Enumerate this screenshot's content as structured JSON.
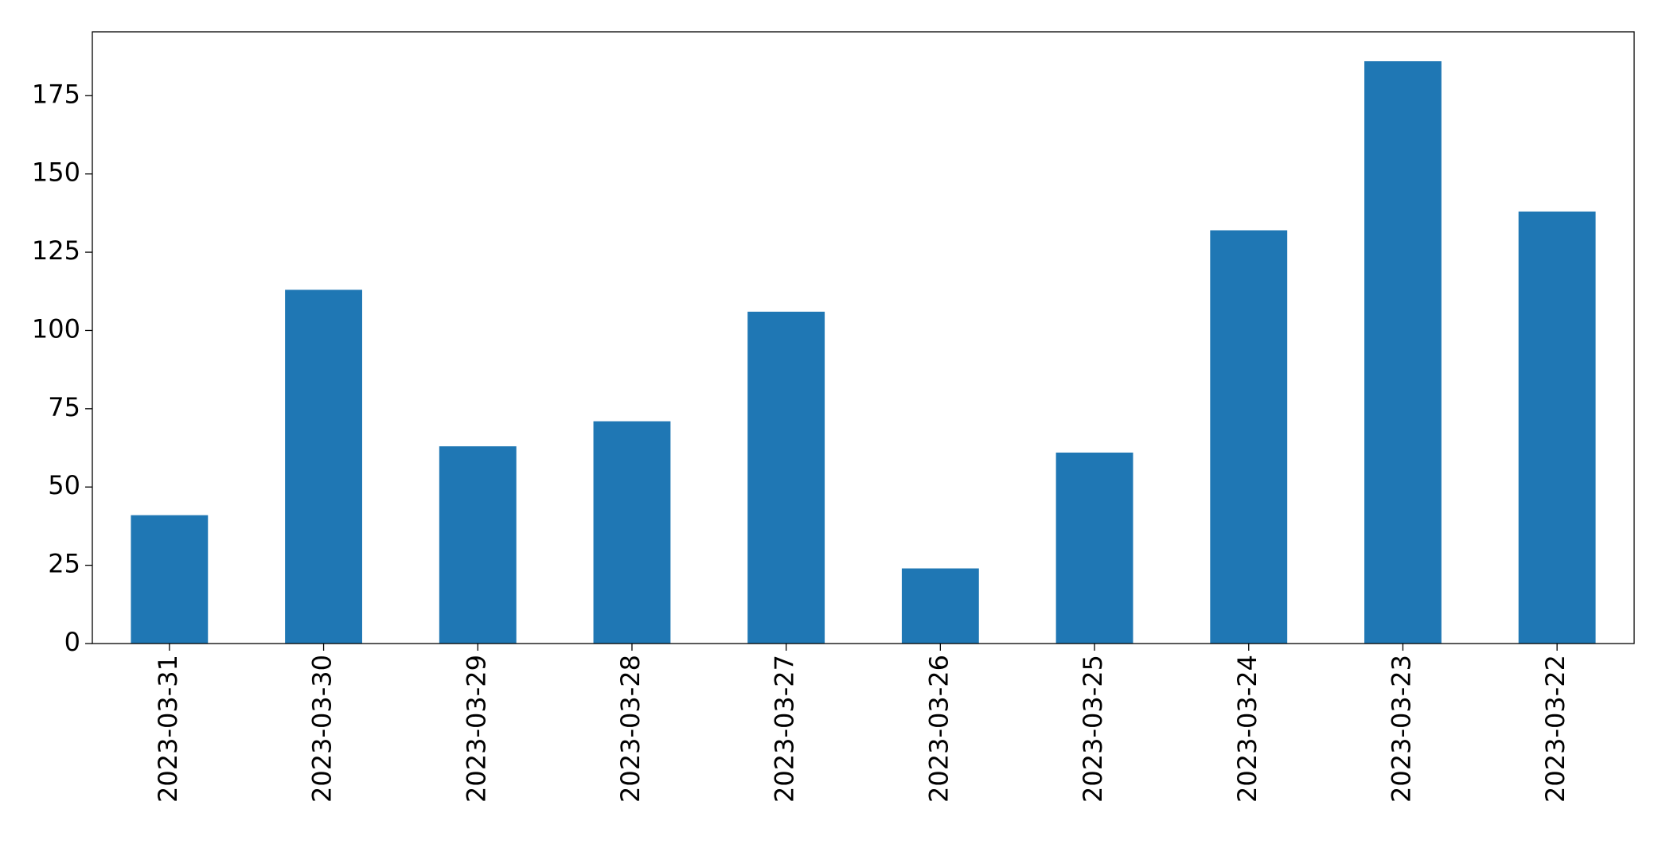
{
  "chart_data": {
    "type": "bar",
    "categories": [
      "2023-03-31",
      "2023-03-30",
      "2023-03-29",
      "2023-03-28",
      "2023-03-27",
      "2023-03-26",
      "2023-03-25",
      "2023-03-24",
      "2023-03-23",
      "2023-03-22"
    ],
    "values": [
      41,
      113,
      63,
      71,
      106,
      24,
      61,
      132,
      186,
      138
    ],
    "color": "#1f77b4",
    "ylim": [
      0,
      195.4
    ],
    "yticks": [
      0,
      25,
      50,
      75,
      100,
      125,
      150,
      175
    ],
    "grid": false
  }
}
